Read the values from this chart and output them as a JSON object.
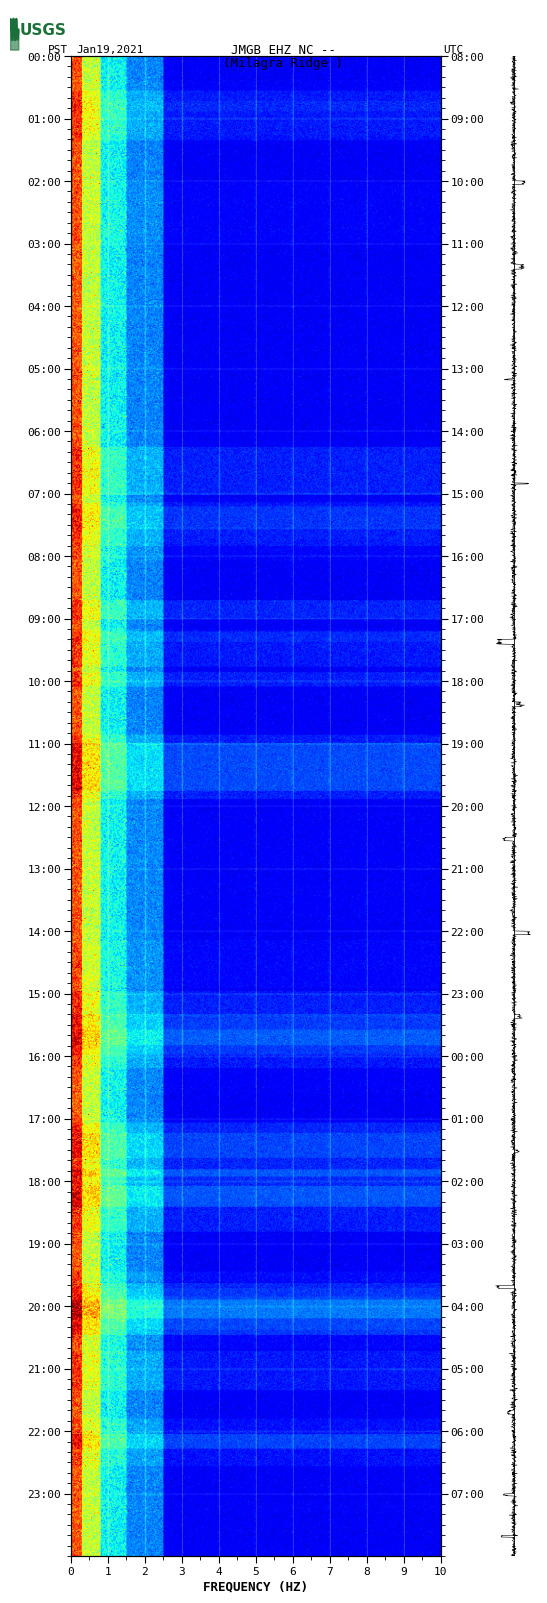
{
  "title_line1": "JMGB EHZ NC --",
  "title_line2": "(Milagra Ridge )",
  "left_label": "PST   Jan19,2021",
  "right_label": "UTC",
  "xlabel": "FREQUENCY (HZ)",
  "freq_min": 0,
  "freq_max": 10,
  "pst_ticks": [
    "00:00",
    "01:00",
    "02:00",
    "03:00",
    "04:00",
    "05:00",
    "06:00",
    "07:00",
    "08:00",
    "09:00",
    "10:00",
    "11:00",
    "12:00",
    "13:00",
    "14:00",
    "15:00",
    "16:00",
    "17:00",
    "18:00",
    "19:00",
    "20:00",
    "21:00",
    "22:00",
    "23:00"
  ],
  "utc_ticks": [
    "08:00",
    "09:00",
    "10:00",
    "11:00",
    "12:00",
    "13:00",
    "14:00",
    "15:00",
    "16:00",
    "17:00",
    "18:00",
    "19:00",
    "20:00",
    "21:00",
    "22:00",
    "23:00",
    "00:00",
    "01:00",
    "02:00",
    "03:00",
    "04:00",
    "05:00",
    "06:00",
    "07:00"
  ],
  "fig_width": 5.52,
  "fig_height": 16.13,
  "dpi": 100,
  "bg_color": "#ffffff",
  "usgs_green": "#1a7038",
  "font_name": "monospace"
}
